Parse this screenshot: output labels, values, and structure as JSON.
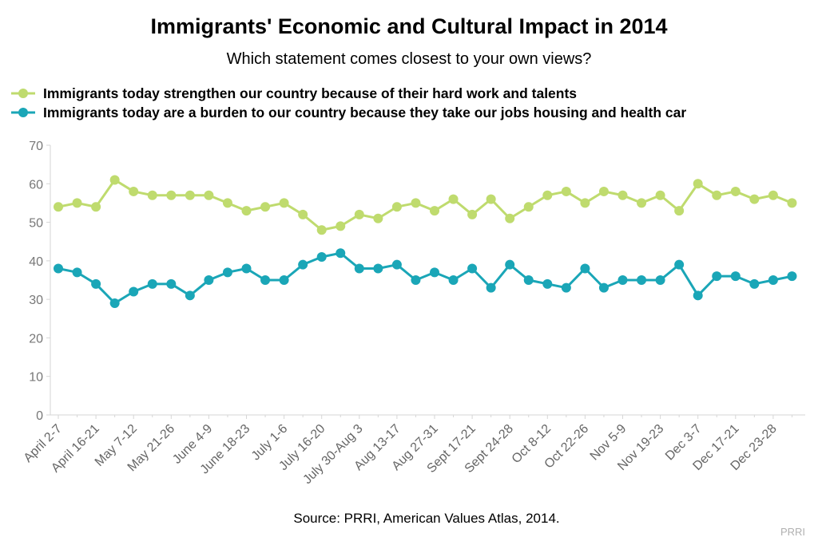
{
  "chart_data": {
    "type": "line",
    "title": "Immigrants' Economic and Cultural Impact in 2014",
    "subtitle": "Which statement comes closest to your own views?",
    "source": "Source: PRRI, American Values Atlas, 2014.",
    "credit": "PRRI",
    "xlabel": "",
    "ylabel": "",
    "ylim": [
      0,
      70
    ],
    "yticks": [
      0,
      10,
      20,
      30,
      40,
      50,
      60,
      70
    ],
    "grid": false,
    "legend_position": "top-left",
    "x_tick_labels": [
      "April 2-7",
      "April 16-21",
      "May 7-12",
      "May 21-26",
      "June 4-9",
      "June 18-23",
      "July 1-6",
      "July 16-20",
      "July 30-Aug 3",
      "Aug 13-17",
      "Aug 27-31",
      "Sept 17-21",
      "Sept 24-28",
      "Oct 8-12",
      "Oct 22-26",
      "Nov 5-9",
      "Nov 19-23",
      "Dec 3-7",
      "Dec 17-21",
      "Dec 23-28"
    ],
    "series": [
      {
        "name": "Immigrants today strengthen our country because of their hard work and talents",
        "color": "#bfdb6e",
        "values": [
          54,
          55,
          54,
          61,
          58,
          57,
          57,
          57,
          57,
          55,
          53,
          54,
          55,
          52,
          48,
          49,
          52,
          51,
          54,
          55,
          53,
          56,
          52,
          56,
          51,
          54,
          57,
          58,
          55,
          58,
          57,
          55,
          57,
          53,
          60,
          57,
          58,
          56,
          57,
          55
        ]
      },
      {
        "name": "Immigrants today are a burden to our country because they take our jobs housing and health car",
        "color": "#1aa6b7",
        "values": [
          38,
          37,
          34,
          29,
          32,
          34,
          34,
          31,
          35,
          37,
          38,
          35,
          35,
          39,
          41,
          42,
          38,
          38,
          39,
          35,
          37,
          35,
          38,
          33,
          39,
          35,
          34,
          33,
          38,
          33,
          35,
          35,
          35,
          39,
          31,
          36,
          36,
          34,
          35,
          36
        ]
      }
    ]
  }
}
